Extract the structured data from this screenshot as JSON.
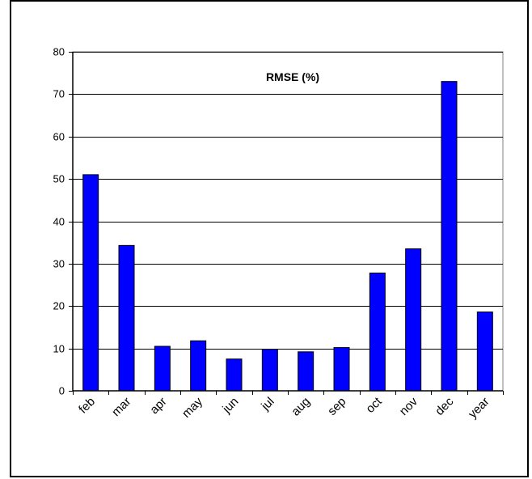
{
  "chart_data": {
    "type": "bar",
    "title": "RMSE (%)",
    "xlabel": "",
    "ylabel": "",
    "categories": [
      "feb",
      "mar",
      "apr",
      "may",
      "jun",
      "jul",
      "aug",
      "sep",
      "oct",
      "nov",
      "dec",
      "year"
    ],
    "values": [
      51,
      34.3,
      10.5,
      11.8,
      7.5,
      9.8,
      9.2,
      10.2,
      27.8,
      33.5,
      73,
      18.6
    ],
    "ylim": [
      0,
      80
    ],
    "yticks": [
      "0",
      "10",
      "20",
      "30",
      "40",
      "50",
      "60",
      "70",
      "80"
    ],
    "grid": true,
    "legend": "none",
    "colors": {
      "bar": "#0000ff",
      "bar_edge": "#000000",
      "grid": "#000000"
    }
  }
}
